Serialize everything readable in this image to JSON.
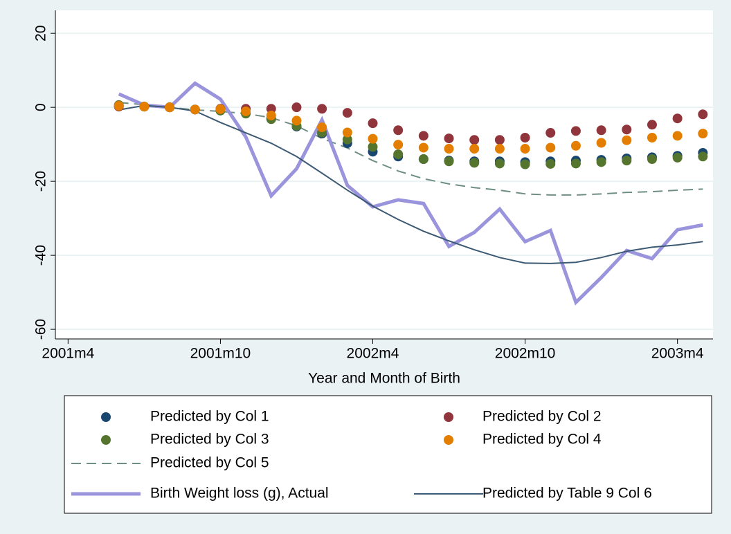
{
  "chart_data": {
    "type": "line",
    "xlabel": "Year and Month of Birth",
    "x": [
      497,
      498,
      499,
      500,
      501,
      502,
      503,
      504,
      505,
      506,
      507,
      508,
      509,
      510,
      511,
      512,
      513,
      514,
      515,
      516,
      517,
      518,
      519,
      520
    ],
    "xlim": [
      494.5,
      520.4
    ],
    "xticks": [
      {
        "value": 495,
        "label": "2001m4"
      },
      {
        "value": 501,
        "label": "2001m10"
      },
      {
        "value": 507,
        "label": "2002m4"
      },
      {
        "value": 513,
        "label": "2002m10"
      },
      {
        "value": 519,
        "label": "2003m4"
      }
    ],
    "ylim": [
      -62.6,
      26.2
    ],
    "yticks": [
      -60,
      -40,
      -20,
      0,
      20
    ],
    "grid": true,
    "series": [
      {
        "name": "Predicted by Col 1",
        "color": "#1a476f",
        "style": "dots",
        "values": [
          0.4,
          0.2,
          0,
          -0.6,
          -0.7,
          -1.5,
          -3.0,
          -5.2,
          -7.1,
          -9.7,
          -12.0,
          -13.3,
          -14.0,
          -14.4,
          -14.6,
          -14.6,
          -14.8,
          -14.6,
          -14.4,
          -14.2,
          -13.8,
          -13.5,
          -13.1,
          -12.3
        ]
      },
      {
        "name": "Predicted by Col 2",
        "color": "#90353b",
        "style": "dots",
        "values": [
          0.2,
          0.2,
          0,
          -0.6,
          -0.4,
          -0.4,
          -0.4,
          0,
          -0.4,
          -1.5,
          -4.3,
          -6.2,
          -7.7,
          -8.4,
          -8.8,
          -8.8,
          -8.2,
          -6.9,
          -6.4,
          -6.2,
          -6.0,
          -4.7,
          -3.0,
          -1.9
        ]
      },
      {
        "name": "Predicted by Col 3",
        "color": "#55752f",
        "style": "dots",
        "values": [
          0.6,
          0.2,
          0,
          -0.6,
          -0.9,
          -1.7,
          -3.2,
          -5.0,
          -6.8,
          -8.7,
          -10.7,
          -12.7,
          -14.0,
          -14.6,
          -15.0,
          -15.2,
          -15.4,
          -15.3,
          -15.2,
          -14.8,
          -14.4,
          -14.0,
          -13.6,
          -13.3
        ]
      },
      {
        "name": "Predicted by Col 4",
        "color": "#e37e00",
        "style": "dots",
        "values": [
          0.4,
          0.2,
          0,
          -0.6,
          -0.5,
          -1.1,
          -2.2,
          -3.6,
          -5.4,
          -6.8,
          -8.5,
          -10.1,
          -10.9,
          -11.2,
          -11.2,
          -11.2,
          -11.2,
          -10.9,
          -10.4,
          -9.6,
          -8.9,
          -8.2,
          -7.7,
          -7.1
        ]
      },
      {
        "name": "Predicted by Col 5",
        "color": "#6e8e84",
        "style": "dashed",
        "values": [
          1.3,
          0.7,
          0,
          -0.7,
          -1.1,
          -1.7,
          -2.8,
          -5.0,
          -8.4,
          -11.0,
          -14.4,
          -17.2,
          -19.3,
          -20.7,
          -21.7,
          -22.4,
          -23.4,
          -23.7,
          -23.7,
          -23.4,
          -23.0,
          -22.8,
          -22.4,
          -22.1
        ]
      },
      {
        "name": "Birth Weight loss (g), Actual",
        "color": "#9a94dc",
        "style": "thick",
        "values": [
          3.6,
          0.6,
          0,
          6.5,
          2.2,
          -8.0,
          -23.9,
          -16.6,
          -3.4,
          -21.1,
          -26.9,
          -25.0,
          -26.0,
          -37.6,
          -33.8,
          -27.5,
          -36.3,
          -33.3,
          -52.7,
          -46.0,
          -38.7,
          -40.9,
          -33.1,
          -31.8
        ]
      },
      {
        "name": "Predicted by Table 9 Col 6",
        "color": "#3c5a73",
        "style": "solid",
        "values": [
          -0.7,
          0.5,
          0,
          -1.0,
          -4.1,
          -6.9,
          -9.7,
          -13.3,
          -17.8,
          -22.4,
          -26.7,
          -30.3,
          -33.5,
          -36.1,
          -38.5,
          -40.6,
          -42.1,
          -42.2,
          -41.9,
          -40.6,
          -38.9,
          -37.8,
          -37.2,
          -36.3
        ]
      }
    ]
  }
}
